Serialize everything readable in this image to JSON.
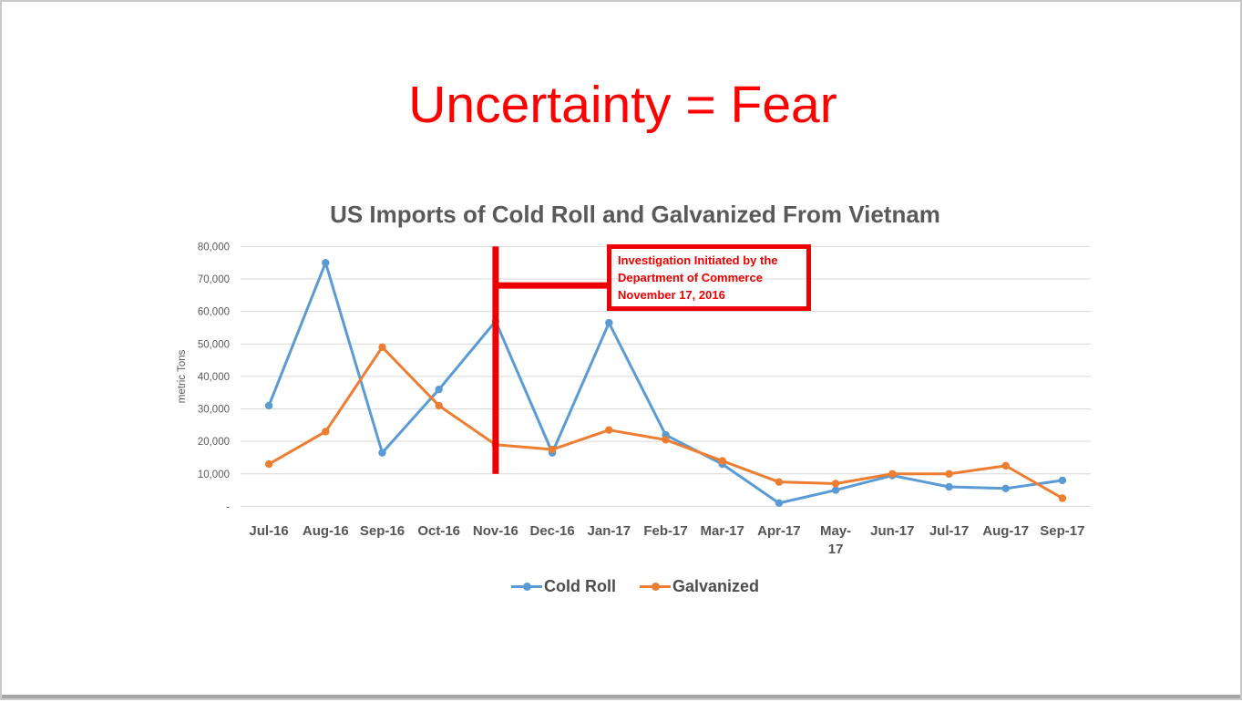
{
  "slide": {
    "title": "Uncertainty = Fear",
    "title_color": "#fe0000"
  },
  "chart": {
    "title": "US Imports of Cold Roll and Galvanized From Vietnam",
    "y_axis_title": "metric Tons"
  },
  "annotation": {
    "line1": "Investigation Initiated by the",
    "line2": "Department of Commerce",
    "line3": "November 17, 2016",
    "color": "#ee0000"
  },
  "chart_data": {
    "type": "line",
    "title": "US Imports of Cold Roll and Galvanized From Vietnam",
    "xlabel": "",
    "ylabel": "metric Tons",
    "ylim": [
      0,
      80000
    ],
    "ytick_step": 10000,
    "ytick_labels": [
      "-",
      "10,000",
      "20,000",
      "30,000",
      "40,000",
      "50,000",
      "60,000",
      "70,000",
      "80,000"
    ],
    "grid": true,
    "legend_position": "bottom",
    "categories": [
      "Jul-16",
      "Aug-16",
      "Sep-16",
      "Oct-16",
      "Nov-16",
      "Dec-16",
      "Jan-17",
      "Feb-17",
      "Mar-17",
      "Apr-17",
      "May-17",
      "Jun-17",
      "Jul-17",
      "Aug-17",
      "Sep-17"
    ],
    "xtick_display": [
      "Jul-16",
      "Aug-16",
      "Sep-16",
      "Oct-16",
      "Nov-16",
      "Dec-16",
      "Jan-17",
      "Feb-17",
      "Mar-17",
      "Apr-17",
      "May-\n17",
      "Jun-17",
      "Jul-17",
      "Aug-17",
      "Sep-17"
    ],
    "series": [
      {
        "name": "Cold Roll",
        "color": "#5B9BD5",
        "values": [
          31000,
          75000,
          16500,
          36000,
          57000,
          16500,
          56500,
          22000,
          13000,
          1000,
          5000,
          9500,
          6000,
          5500,
          8000
        ]
      },
      {
        "name": "Galvanized",
        "color": "#ED7D31",
        "values": [
          13000,
          23000,
          49000,
          31000,
          19000,
          17500,
          23500,
          20500,
          14000,
          7500,
          7000,
          10000,
          10000,
          12500,
          2500
        ]
      }
    ],
    "annotation_marker": {
      "x_category": "Nov-16",
      "vline_top_value": 80000,
      "vline_bottom_value": 10000,
      "connector_value": 68000,
      "color": "#ee0000",
      "text": [
        "Investigation Initiated by the",
        "Department of Commerce",
        "November 17, 2016"
      ]
    }
  }
}
